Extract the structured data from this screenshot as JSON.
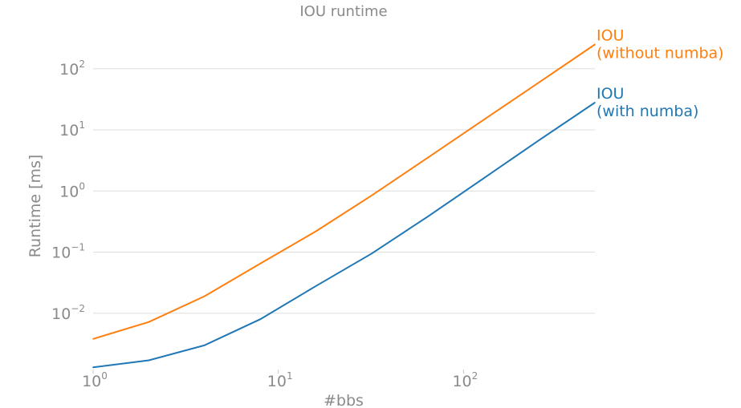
{
  "chart_data": {
    "type": "line",
    "title": "IOU runtime",
    "xlabel": "#bbs",
    "ylabel": "Runtime [ms]",
    "xscale": "log",
    "yscale": "log",
    "xlim": [
      1,
      512
    ],
    "ylim": [
      0.0012,
      450
    ],
    "x_ticks": [
      {
        "base": "10",
        "exp": "0",
        "value": 1
      },
      {
        "base": "10",
        "exp": "1",
        "value": 10
      },
      {
        "base": "10",
        "exp": "2",
        "value": 100
      }
    ],
    "y_ticks": [
      {
        "base": "10",
        "exp": "−2",
        "value": 0.01
      },
      {
        "base": "10",
        "exp": "−1",
        "value": 0.1
      },
      {
        "base": "10",
        "exp": "0",
        "value": 1
      },
      {
        "base": "10",
        "exp": "1",
        "value": 10
      },
      {
        "base": "10",
        "exp": "2",
        "value": 100
      }
    ],
    "grid": "horizontal",
    "legend": "end-of-line labels",
    "x": [
      1,
      2,
      4,
      8,
      16,
      32,
      64,
      128,
      256,
      512
    ],
    "series": [
      {
        "label_line1": "IOU",
        "label_line2": "(without numba)",
        "color": "#ff7f0e",
        "values": [
          0.0038,
          0.0072,
          0.019,
          0.065,
          0.22,
          0.85,
          3.5,
          14.5,
          60,
          250
        ]
      },
      {
        "label_line1": "IOU",
        "label_line2": "(with numba)",
        "color": "#1f77b4",
        "values": [
          0.0013,
          0.0017,
          0.003,
          0.008,
          0.028,
          0.095,
          0.38,
          1.6,
          6.8,
          28
        ]
      }
    ]
  }
}
